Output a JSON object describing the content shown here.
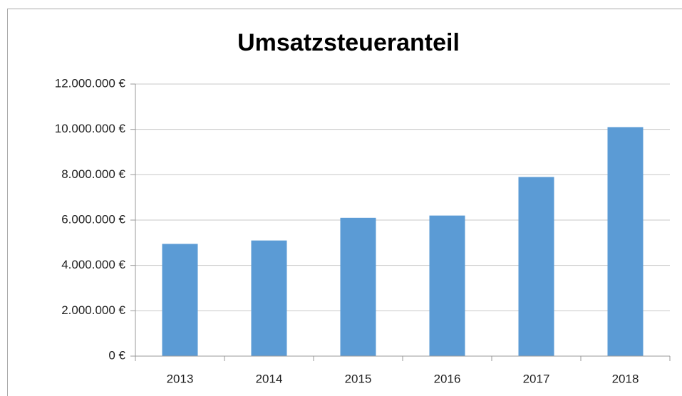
{
  "chart_data": {
    "type": "bar",
    "title": "Umsatzsteueranteil",
    "categories": [
      "2013",
      "2014",
      "2015",
      "2016",
      "2017",
      "2018"
    ],
    "values": [
      4950000,
      5100000,
      6100000,
      6200000,
      7900000,
      10100000
    ],
    "color": "#5b9bd5",
    "ylim": [
      0,
      12000000
    ],
    "yticks": [
      {
        "value": 0,
        "label": "0 €"
      },
      {
        "value": 2000000,
        "label": "2.000.000 €"
      },
      {
        "value": 4000000,
        "label": "4.000.000 €"
      },
      {
        "value": 6000000,
        "label": "6.000.000 €"
      },
      {
        "value": 8000000,
        "label": "8.000.000 €"
      },
      {
        "value": 10000000,
        "label": "10.000.000 €"
      },
      {
        "value": 12000000,
        "label": "12.000.000 €"
      }
    ],
    "grid": true
  }
}
